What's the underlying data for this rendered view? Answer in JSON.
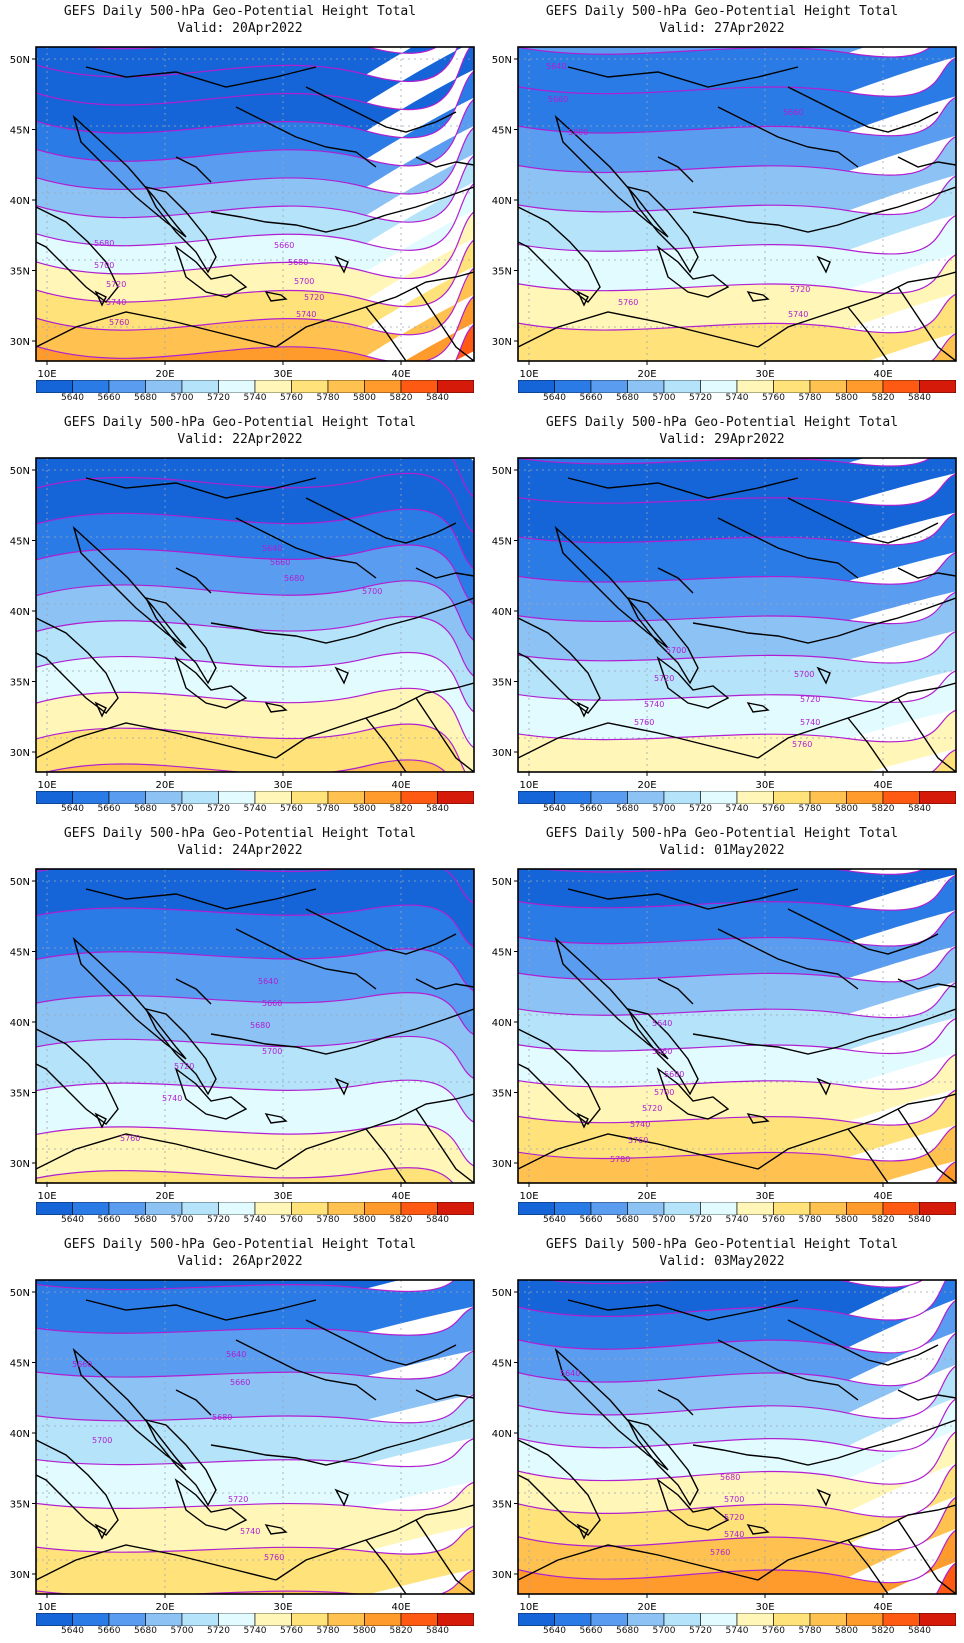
{
  "title_text": "GEFS Daily 500-hPa Geo-Potential Height Total",
  "valid_prefix": "Valid:",
  "panels": [
    {
      "date": "20Apr2022",
      "contour_labels": [
        "5680",
        "5700",
        "5720",
        "5740",
        "5760",
        "5660",
        "5680",
        "5700",
        "5720",
        "5740"
      ]
    },
    {
      "date": "27Apr2022",
      "contour_labels": [
        "5640",
        "5660",
        "5680",
        "5660",
        "5720",
        "5760",
        "5740"
      ]
    },
    {
      "date": "22Apr2022",
      "contour_labels": [
        "5640",
        "5660",
        "5680",
        "5700"
      ]
    },
    {
      "date": "29Apr2022",
      "contour_labels": [
        "5700",
        "5720",
        "5740",
        "5760",
        "5700",
        "5720",
        "5740",
        "5760"
      ]
    },
    {
      "date": "24Apr2022",
      "contour_labels": [
        "5640",
        "5660",
        "5680",
        "5700",
        "5720",
        "5740",
        "5760"
      ]
    },
    {
      "date": "01May2022",
      "contour_labels": [
        "5640",
        "5660",
        "5680",
        "5700",
        "5720",
        "5740",
        "5760",
        "5780"
      ]
    },
    {
      "date": "26Apr2022",
      "contour_labels": [
        "5640",
        "5660",
        "5660",
        "5680",
        "5700",
        "5720",
        "5740",
        "5760"
      ]
    },
    {
      "date": "03May2022",
      "contour_labels": [
        "5640",
        "5680",
        "5700",
        "5720",
        "5740",
        "5760"
      ]
    }
  ],
  "lat_ticks": [
    "50N",
    "45N",
    "40N",
    "35N",
    "30N"
  ],
  "lon_ticks": [
    "10E",
    "20E",
    "30E",
    "40E"
  ],
  "colorbar": {
    "labels": [
      "5640",
      "5660",
      "5680",
      "5700",
      "5720",
      "5740",
      "5760",
      "5780",
      "5800",
      "5820",
      "5840"
    ],
    "colors": [
      "#1565d8",
      "#2b7be6",
      "#5a9cf0",
      "#8dc2f5",
      "#b5e3fa",
      "#e2fbff",
      "#fff6b8",
      "#ffe27a",
      "#ffc250",
      "#ff9a2c",
      "#ff5a14",
      "#d61a0a"
    ]
  },
  "contour_color": "#b01fd1"
}
